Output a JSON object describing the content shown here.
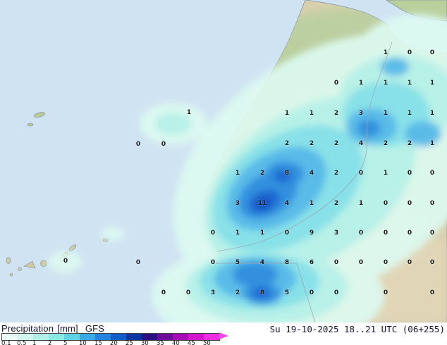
{
  "map": {
    "ocean_color": "#cfe3f2",
    "land_color": "#d9cfae",
    "values": [
      [
        268,
        160,
        "1"
      ],
      [
        196,
        205,
        "0"
      ],
      [
        232,
        205,
        "0"
      ],
      [
        93,
        371,
        "0"
      ],
      [
        196,
        373,
        "0"
      ],
      [
        547,
        75,
        "1"
      ],
      [
        581,
        75,
        "0"
      ],
      [
        613,
        75,
        "0"
      ],
      [
        477,
        118,
        "0"
      ],
      [
        512,
        118,
        "1"
      ],
      [
        547,
        118,
        "1"
      ],
      [
        581,
        118,
        "1"
      ],
      [
        613,
        118,
        "1"
      ],
      [
        407,
        161,
        "1"
      ],
      [
        442,
        161,
        "1"
      ],
      [
        477,
        161,
        "2"
      ],
      [
        512,
        161,
        "3"
      ],
      [
        547,
        161,
        "1"
      ],
      [
        581,
        161,
        "1"
      ],
      [
        613,
        161,
        "1"
      ],
      [
        407,
        204,
        "2"
      ],
      [
        442,
        204,
        "2"
      ],
      [
        477,
        204,
        "2"
      ],
      [
        512,
        204,
        "4"
      ],
      [
        547,
        204,
        "2"
      ],
      [
        581,
        204,
        "2"
      ],
      [
        613,
        204,
        "1"
      ],
      [
        337,
        246,
        "1"
      ],
      [
        372,
        246,
        "2"
      ],
      [
        407,
        246,
        "8"
      ],
      [
        442,
        246,
        "4"
      ],
      [
        477,
        246,
        "2"
      ],
      [
        512,
        246,
        "0"
      ],
      [
        547,
        246,
        "1"
      ],
      [
        581,
        246,
        "0"
      ],
      [
        613,
        246,
        "0"
      ],
      [
        337,
        289,
        "3"
      ],
      [
        372,
        289,
        "11"
      ],
      [
        407,
        289,
        "4"
      ],
      [
        442,
        289,
        "1"
      ],
      [
        477,
        289,
        "2"
      ],
      [
        512,
        289,
        "1"
      ],
      [
        547,
        289,
        "0"
      ],
      [
        581,
        289,
        "0"
      ],
      [
        613,
        289,
        "0"
      ],
      [
        302,
        331,
        "0"
      ],
      [
        337,
        331,
        "1"
      ],
      [
        372,
        331,
        "1"
      ],
      [
        407,
        331,
        "0"
      ],
      [
        442,
        331,
        "9"
      ],
      [
        477,
        331,
        "3"
      ],
      [
        512,
        331,
        "0"
      ],
      [
        547,
        331,
        "0"
      ],
      [
        581,
        331,
        "0"
      ],
      [
        613,
        331,
        "0"
      ],
      [
        302,
        373,
        "0"
      ],
      [
        337,
        373,
        "5"
      ],
      [
        372,
        373,
        "4"
      ],
      [
        407,
        373,
        "8"
      ],
      [
        442,
        373,
        "6"
      ],
      [
        477,
        373,
        "0"
      ],
      [
        512,
        373,
        "0"
      ],
      [
        547,
        373,
        "0"
      ],
      [
        581,
        373,
        "0"
      ],
      [
        613,
        373,
        "0"
      ],
      [
        232,
        416,
        "0"
      ],
      [
        267,
        416,
        "0"
      ],
      [
        302,
        416,
        "3"
      ],
      [
        337,
        416,
        "2"
      ],
      [
        372,
        416,
        "8"
      ],
      [
        407,
        416,
        "5"
      ],
      [
        442,
        416,
        "0"
      ],
      [
        477,
        416,
        "0"
      ],
      [
        547,
        416,
        "0"
      ],
      [
        613,
        416,
        "0"
      ]
    ]
  },
  "legend": {
    "title": "Precipitation",
    "units": "[mm]",
    "model": "GFS",
    "scale_values": [
      "0.1",
      "0.5",
      "1",
      "2",
      "5",
      "10",
      "15",
      "20",
      "25",
      "30",
      "35",
      "40",
      "45",
      "50"
    ],
    "scale_colors": [
      "#e9fdf6",
      "#d0f7ee",
      "#b0f0e6",
      "#8ae8e0",
      "#60d2e6",
      "#3aaae6",
      "#2583de",
      "#145cc8",
      "#0a35a0",
      "#2a1080",
      "#6c0a9a",
      "#a50ab4",
      "#d214cc",
      "#ee2ede"
    ],
    "arrow_color": "#f84ae8"
  },
  "footer": {
    "timestamp": "Su 19-10-2025 18..21 UTC (06+255)"
  }
}
